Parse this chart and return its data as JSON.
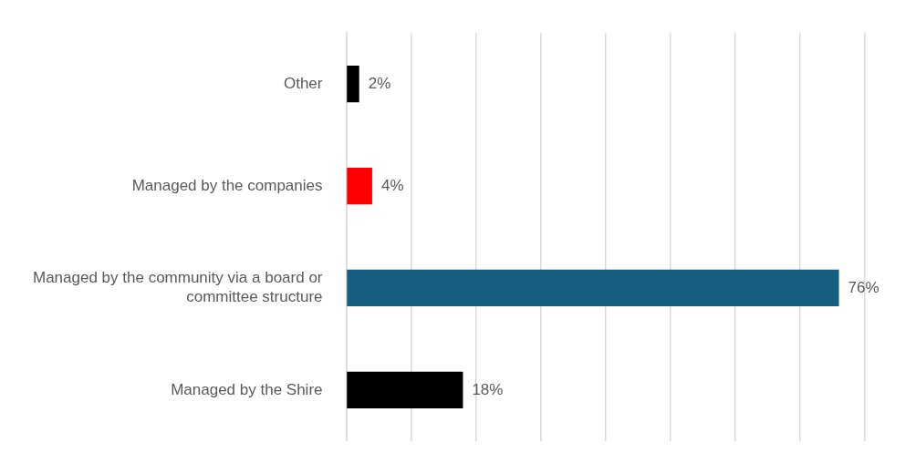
{
  "chart_data": {
    "type": "bar",
    "orientation": "horizontal",
    "categories": [
      "Other",
      "Managed by the companies",
      "Managed by the community via a board or committee structure",
      "Managed by the Shire"
    ],
    "values": [
      2,
      4,
      76,
      18
    ],
    "colors": [
      "#000000",
      "#ff0000",
      "#155e80",
      "#000000"
    ],
    "value_labels": [
      "2%",
      "4%",
      "76%",
      "18%"
    ],
    "xlim": [
      0,
      80
    ],
    "xticks": [
      {
        "value": 0,
        "label": null
      },
      {
        "value": 10,
        "label": null
      },
      {
        "value": 20,
        "label": null
      },
      {
        "value": 30,
        "label": null
      },
      {
        "value": 40,
        "label": null
      },
      {
        "value": 50,
        "label": null
      },
      {
        "value": 60,
        "label": null
      },
      {
        "value": 70,
        "label": null
      },
      {
        "value": 80,
        "label": null
      }
    ],
    "grid": "x",
    "tick_labels": "y",
    "legend": false
  }
}
